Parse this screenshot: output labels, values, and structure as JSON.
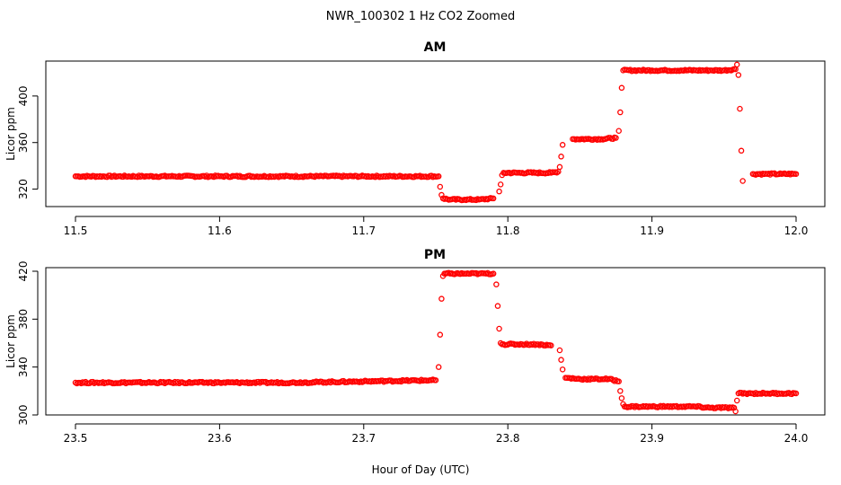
{
  "title": "NWR_100302  1 Hz CO2 Zoomed",
  "xlabel": "Hour of Day (UTC)",
  "colors": {
    "points": "#ff0000",
    "axes": "#000000"
  },
  "chart_data": [
    {
      "type": "scatter",
      "title": "AM",
      "xlabel": "",
      "ylabel": "Licor ppm",
      "xlim": [
        11.5,
        12.0
      ],
      "ylim": [
        305,
        430
      ],
      "xticks": [
        11.5,
        11.6,
        11.7,
        11.8,
        11.9,
        12.0
      ],
      "xtick_labels": [
        "11.5",
        "11.6",
        "11.7",
        "11.8",
        "11.9",
        "12.0"
      ],
      "yticks": [
        320,
        360,
        400
      ],
      "ytick_labels": [
        "320",
        "360",
        "400"
      ],
      "marker": "open-circle",
      "x": [
        11.5,
        11.55,
        11.6,
        11.65,
        11.7,
        11.752,
        11.753,
        11.754,
        11.755,
        11.76,
        11.77,
        11.78,
        11.79,
        11.794,
        11.795,
        11.796,
        11.797,
        11.81,
        11.82,
        11.83,
        11.835,
        11.836,
        11.837,
        11.838,
        11.845,
        11.855,
        11.865,
        11.875,
        11.877,
        11.878,
        11.879,
        11.88,
        11.89,
        11.9,
        11.91,
        11.92,
        11.93,
        11.94,
        11.95,
        11.958,
        11.959,
        11.96,
        11.961,
        11.962,
        11.963,
        11.97,
        11.98,
        11.99,
        12.0
      ],
      "y": [
        331,
        331,
        331,
        331,
        331,
        331,
        322,
        315,
        312,
        311,
        311,
        311,
        312,
        318,
        324,
        332,
        334,
        334,
        334,
        334,
        335,
        339,
        348,
        358,
        363,
        363,
        363,
        364,
        370,
        386,
        407,
        422,
        422,
        422,
        422,
        422,
        422,
        422,
        422,
        423,
        427,
        418,
        389,
        353,
        327,
        333,
        333,
        333,
        333
      ]
    },
    {
      "type": "scatter",
      "title": "PM",
      "xlabel": "Hour of Day (UTC)",
      "ylabel": "Licor ppm",
      "xlim": [
        23.5,
        24.0
      ],
      "ylim": [
        300,
        423
      ],
      "xticks": [
        23.5,
        23.6,
        23.7,
        23.8,
        23.9,
        24.0
      ],
      "xtick_labels": [
        "23.5",
        "23.6",
        "23.7",
        "23.8",
        "23.9",
        "24.0"
      ],
      "yticks": [
        300,
        340,
        380,
        420
      ],
      "ytick_labels": [
        "300",
        "340",
        "380",
        "420"
      ],
      "marker": "open-circle",
      "x": [
        23.5,
        23.55,
        23.6,
        23.65,
        23.7,
        23.75,
        23.752,
        23.753,
        23.754,
        23.755,
        23.756,
        23.76,
        23.77,
        23.78,
        23.79,
        23.792,
        23.793,
        23.794,
        23.795,
        23.796,
        23.81,
        23.82,
        23.83,
        23.836,
        23.837,
        23.838,
        23.84,
        23.85,
        23.86,
        23.87,
        23.877,
        23.878,
        23.879,
        23.88,
        23.881,
        23.89,
        23.9,
        23.91,
        23.92,
        23.93,
        23.94,
        23.95,
        23.957,
        23.958,
        23.959,
        23.96,
        23.97,
        23.98,
        23.99,
        24.0
      ],
      "y": [
        327,
        327,
        327,
        327,
        328,
        329,
        340,
        367,
        397,
        416,
        418,
        418,
        418,
        418,
        418,
        409,
        391,
        372,
        360,
        359,
        359,
        359,
        358,
        354,
        346,
        338,
        331,
        330,
        330,
        330,
        328,
        320,
        314,
        309,
        307,
        307,
        307,
        307,
        307,
        307,
        306,
        306,
        306,
        303,
        312,
        318,
        318,
        318,
        318,
        318
      ]
    }
  ]
}
